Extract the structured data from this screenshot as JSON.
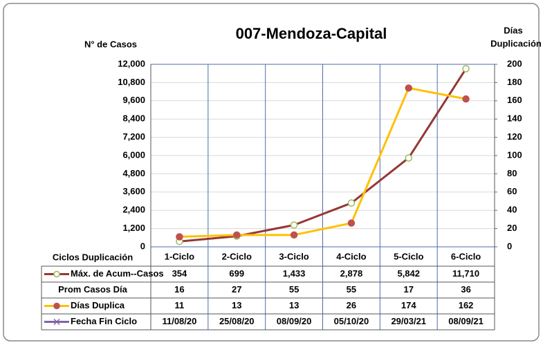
{
  "chart_data": {
    "type": "line",
    "title": "007-Mendoza-Capital",
    "y_label": "N° de Casos",
    "y2_label": [
      "Días",
      "Duplicación"
    ],
    "categories_label": "Ciclos Duplicación",
    "categories": [
      "1-Ciclo",
      "2-Ciclo",
      "3-Ciclo",
      "4-Ciclo",
      "5-Ciclo",
      "6-Ciclo"
    ],
    "ylim": [
      0,
      12000
    ],
    "yticks": [
      0,
      {
        "value": 1200,
        "label": "1,200"
      },
      {
        "value": 2400,
        "label": "2,400"
      },
      {
        "value": 3600,
        "label": "3,600"
      },
      {
        "value": 4800,
        "label": "4,800"
      },
      {
        "value": 6000,
        "label": "6,000"
      },
      {
        "value": 7200,
        "label": "7,200"
      },
      {
        "value": 8400,
        "label": "8,400"
      },
      {
        "value": 9600,
        "label": "9,600"
      },
      {
        "value": 10800,
        "label": "10,800"
      },
      {
        "value": 12000,
        "label": "12,000"
      }
    ],
    "y2lim": [
      0,
      200
    ],
    "y2ticks": [
      0,
      20,
      40,
      60,
      80,
      100,
      120,
      140,
      160,
      180,
      200
    ],
    "grid": true,
    "series": [
      {
        "name": "Máx. de Acum--Casos",
        "color": "#953735",
        "marker_color": "#ffffff",
        "marker_edge": "#9bbb59",
        "values": [
          354,
          699,
          1433,
          2878,
          5842,
          11710
        ],
        "value_labels": [
          "354",
          "699",
          "1,433",
          "2,878",
          "5,842",
          "11,710"
        ]
      },
      {
        "name": "Prom Casos Día",
        "values": [
          16,
          27,
          55,
          55,
          17,
          36
        ]
      },
      {
        "name": "Días Duplica",
        "color": "#ffc000",
        "marker_color": "#c0504d",
        "marker_edge": "#c0504d",
        "axis": "y2",
        "values": [
          11,
          13,
          13,
          26,
          174,
          162
        ]
      },
      {
        "name": "Fecha Fin Ciclo",
        "color": "#8064a2",
        "values": [
          "11/08/20",
          "25/08/20",
          "08/09/20",
          "05/10/20",
          "29/03/21",
          "08/09/21"
        ]
      }
    ]
  }
}
